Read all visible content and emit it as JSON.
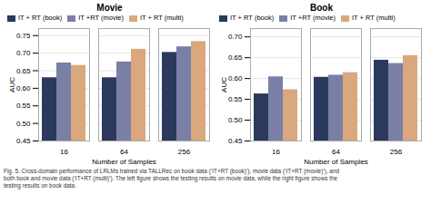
{
  "chart_data": [
    {
      "type": "bar",
      "title": "Movie",
      "xlabel": "Number of Samples",
      "ylabel": "AUC",
      "categories": [
        "16",
        "64",
        "256"
      ],
      "series": [
        {
          "name": "IT + RT (book)",
          "color": "#2b3a5c",
          "values": [
            0.63,
            0.63,
            0.702
          ]
        },
        {
          "name": "IT +RT (movie)",
          "color": "#7a7fa8",
          "values": [
            0.672,
            0.675,
            0.718
          ]
        },
        {
          "name": "IT + RT (multi)",
          "color": "#d9a87c",
          "values": [
            0.665,
            0.711,
            0.733
          ]
        }
      ],
      "ylim": [
        0.45,
        0.77
      ],
      "yticks": [
        0.45,
        {
          "value": 0.5,
          "label": "0.50"
        },
        0.55,
        {
          "value": 0.6,
          "label": "0.60"
        },
        0.65,
        {
          "value": 0.7,
          "label": "0.70"
        },
        0.75
      ],
      "grid": true,
      "legend": "upper left"
    },
    {
      "type": "bar",
      "title": "Book",
      "xlabel": "Number of Samples",
      "ylabel": "AUC",
      "categories": [
        "16",
        "64",
        "256"
      ],
      "series": [
        {
          "name": "IT + RT (book)",
          "color": "#2b3a5c",
          "values": [
            0.563,
            0.603,
            0.644
          ]
        },
        {
          "name": "IT +RT (movie)",
          "color": "#7a7fa8",
          "values": [
            0.604,
            0.608,
            0.636
          ]
        },
        {
          "name": "IT + RT (multi)",
          "color": "#d9a87c",
          "values": [
            0.573,
            0.614,
            0.655
          ]
        }
      ],
      "ylim": [
        0.45,
        0.72
      ],
      "yticks": [
        0.45,
        {
          "value": 0.5,
          "label": "0.50"
        },
        0.55,
        {
          "value": 0.6,
          "label": "0.60"
        },
        0.65,
        {
          "value": 0.7,
          "label": "0.70"
        }
      ],
      "grid": true,
      "legend": "upper left"
    }
  ],
  "caption": [
    "Fig. 5.  Cross-domain performance of LRLMs trained via TALLRec on book data (‘IT+RT (book)’), movie data (‘IT+RT (movie)’), and",
    "both book and movie data (‘IT+RT (multi)’). The left figure shows the testing results on movie data, while the right figure shows the",
    "testing results on book data."
  ]
}
